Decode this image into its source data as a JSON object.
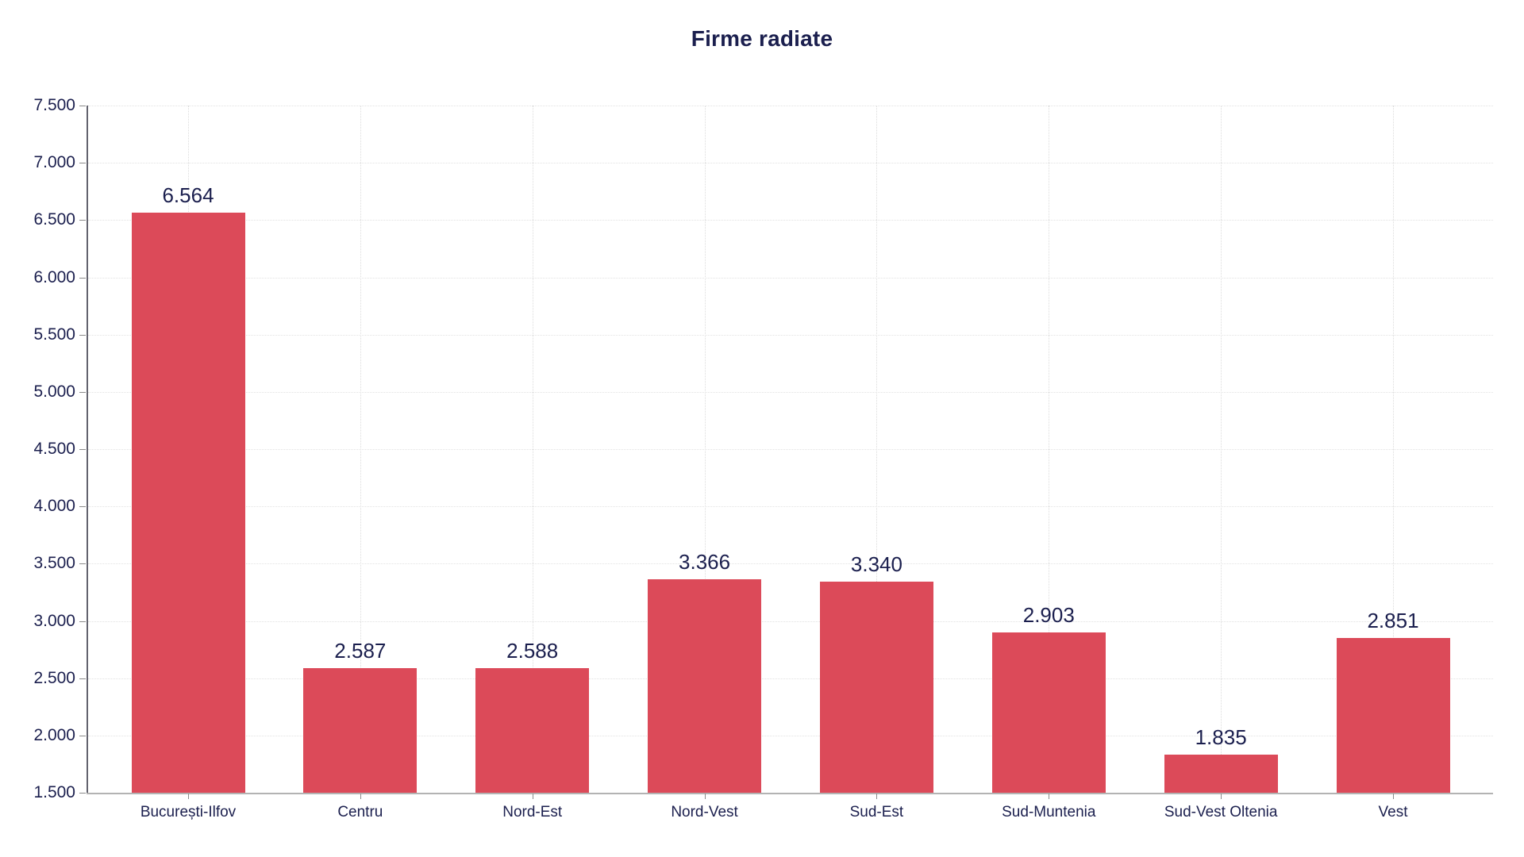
{
  "title": "Firme radiate",
  "colors": {
    "bar": "#dc4a59",
    "text_navy": "#1b1f4e",
    "hgrid": "#e2e2e2",
    "vgrid": "#dcdcdc",
    "y_axis_line": "#63636e",
    "x_axis_line": "#b3b3b3",
    "tick": "#8a8a8a",
    "background": "#ffffff"
  },
  "chart_data": {
    "type": "bar",
    "title": "Firme radiate",
    "categories": [
      "București-Ilfov",
      "Centru",
      "Nord-Est",
      "Nord-Vest",
      "Sud-Est",
      "Sud-Muntenia",
      "Sud-Vest Oltenia",
      "Vest"
    ],
    "values": [
      6564,
      2587,
      2588,
      3366,
      3340,
      2903,
      1835,
      2851
    ],
    "value_labels": [
      "6.564",
      "2.587",
      "2.588",
      "3.366",
      "3.340",
      "2.903",
      "1.835",
      "2.851"
    ],
    "xlabel": "",
    "ylabel": "",
    "ylim": [
      1500,
      7500
    ],
    "y_ticks": [
      {
        "value": 1500,
        "label": "1.500"
      },
      {
        "value": 2000,
        "label": "2.000"
      },
      {
        "value": 2500,
        "label": "2.500"
      },
      {
        "value": 3000,
        "label": "3.000"
      },
      {
        "value": 3500,
        "label": "3.500"
      },
      {
        "value": 4000,
        "label": "4.000"
      },
      {
        "value": 4500,
        "label": "4.500"
      },
      {
        "value": 5000,
        "label": "5.000"
      },
      {
        "value": 5500,
        "label": "5.500"
      },
      {
        "value": 6000,
        "label": "6.000"
      },
      {
        "value": 6500,
        "label": "6.500"
      },
      {
        "value": 7000,
        "label": "7.000"
      },
      {
        "value": 7500,
        "label": "7.500"
      }
    ],
    "grid": "dotted horizontal and vertical gridlines",
    "legend": "none",
    "bar_color": "#dc4a59",
    "label_color": "#1b1f4e"
  }
}
